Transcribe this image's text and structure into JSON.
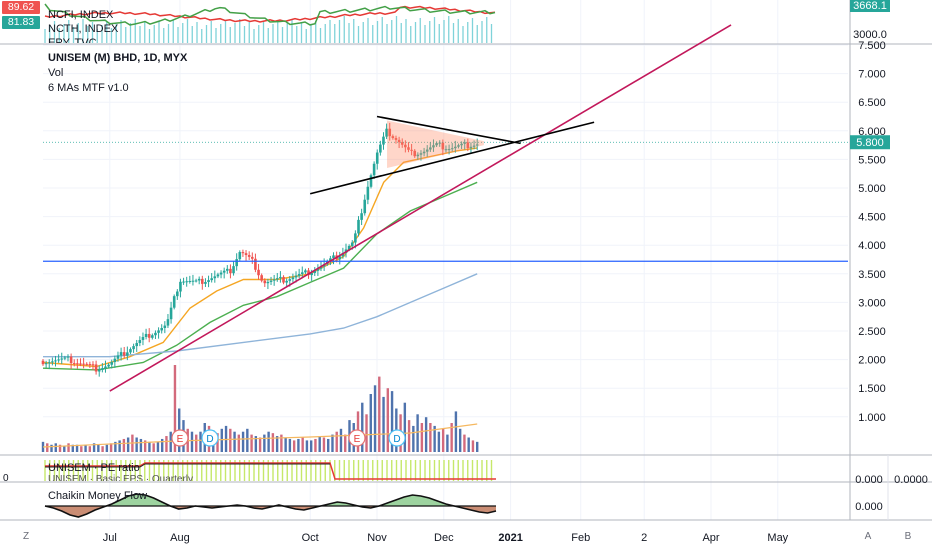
{
  "chart_data": {
    "type": "line",
    "title": "UNISEM (M) BHD, 1D, MYX",
    "indicators": [
      "Vol",
      "6 MAs MTF v1.0"
    ],
    "price_axis_ticks": [
      "7.500",
      "7.000",
      "6.500",
      "6.000",
      "5.500",
      "5.000",
      "4.500",
      "4.000",
      "3.500",
      "3.000",
      "2.500",
      "2.000",
      "1.500",
      "1.000"
    ],
    "last_price": "5.800",
    "ylim": [
      0.75,
      8.2
    ],
    "x_labels": [
      "Jul",
      "Aug",
      "Oct",
      "Nov",
      "Dec",
      "2021",
      "Feb",
      "2",
      "Apr",
      "May"
    ],
    "x_label_months": [
      6,
      7.05,
      9,
      10,
      11,
      12,
      13.05,
      14,
      15,
      16
    ],
    "candles_start_month": 5.0,
    "candles_end_month": 11.5,
    "price_path": [
      [
        5.0,
        1.98
      ],
      [
        5.4,
        2.0
      ],
      [
        5.8,
        1.85
      ],
      [
        6.0,
        1.92
      ],
      [
        6.3,
        2.2
      ],
      [
        6.6,
        2.45
      ],
      [
        6.85,
        2.6
      ],
      [
        7.05,
        3.4
      ],
      [
        7.3,
        3.35
      ],
      [
        7.55,
        3.45
      ],
      [
        7.8,
        3.55
      ],
      [
        7.95,
        3.9
      ],
      [
        8.15,
        3.7
      ],
      [
        8.3,
        3.35
      ],
      [
        8.6,
        3.4
      ],
      [
        8.9,
        3.5
      ],
      [
        9.2,
        3.65
      ],
      [
        9.45,
        3.85
      ],
      [
        9.65,
        4.05
      ],
      [
        9.85,
        5.0
      ],
      [
        10.0,
        5.6
      ],
      [
        10.15,
        6.0
      ],
      [
        10.3,
        5.85
      ],
      [
        10.5,
        5.6
      ],
      [
        10.7,
        5.65
      ],
      [
        10.9,
        5.75
      ],
      [
        11.1,
        5.7
      ],
      [
        11.3,
        5.75
      ],
      [
        11.5,
        5.78
      ]
    ],
    "ma_series": [
      {
        "color": "#f5a623",
        "values": [
          [
            5.0,
            1.95
          ],
          [
            5.8,
            1.88
          ],
          [
            6.3,
            2.05
          ],
          [
            6.8,
            2.3
          ],
          [
            7.2,
            2.9
          ],
          [
            7.6,
            3.2
          ],
          [
            8.0,
            3.4
          ],
          [
            8.5,
            3.4
          ],
          [
            9.0,
            3.5
          ],
          [
            9.5,
            3.8
          ],
          [
            9.8,
            4.3
          ],
          [
            10.1,
            5.1
          ],
          [
            10.4,
            5.45
          ],
          [
            10.8,
            5.55
          ],
          [
            11.2,
            5.65
          ],
          [
            11.5,
            5.7
          ]
        ]
      },
      {
        "color": "#4caf50",
        "values": [
          [
            5.0,
            1.85
          ],
          [
            5.8,
            1.82
          ],
          [
            6.5,
            1.95
          ],
          [
            7.0,
            2.25
          ],
          [
            7.5,
            2.65
          ],
          [
            8.0,
            2.95
          ],
          [
            8.5,
            3.1
          ],
          [
            9.0,
            3.35
          ],
          [
            9.5,
            3.6
          ],
          [
            10.0,
            4.2
          ],
          [
            10.5,
            4.6
          ],
          [
            11.0,
            4.85
          ],
          [
            11.5,
            5.1
          ]
        ]
      },
      {
        "color": "#8fb4d9",
        "values": [
          [
            5.0,
            2.05
          ],
          [
            6.0,
            2.05
          ],
          [
            7.0,
            2.15
          ],
          [
            8.0,
            2.3
          ],
          [
            9.0,
            2.45
          ],
          [
            9.5,
            2.55
          ],
          [
            10.0,
            2.75
          ],
          [
            10.5,
            3.0
          ],
          [
            11.0,
            3.25
          ],
          [
            11.5,
            3.5
          ]
        ]
      }
    ],
    "resistance_level": 3.72,
    "trend_lines": [
      {
        "color": "#c2185b",
        "points": [
          [
            6.0,
            1.45
          ],
          [
            15.3,
            7.85
          ]
        ]
      },
      {
        "color": "#000000",
        "points": [
          [
            10.0,
            6.25
          ],
          [
            12.15,
            5.78
          ]
        ]
      },
      {
        "color": "#000000",
        "points": [
          [
            9.0,
            4.9
          ],
          [
            13.25,
            6.15
          ]
        ]
      }
    ],
    "volume": [
      7,
      6,
      5,
      6,
      5,
      4,
      6,
      5,
      5,
      4,
      5,
      4,
      6,
      5,
      4,
      5,
      6,
      7,
      8,
      9,
      10,
      12,
      10,
      9,
      8,
      7,
      6,
      7,
      9,
      11,
      14,
      60,
      30,
      22,
      16,
      14,
      12,
      14,
      20,
      18,
      15,
      13,
      16,
      18,
      16,
      14,
      12,
      14,
      16,
      12,
      11,
      10,
      12,
      14,
      13,
      11,
      12,
      10,
      9,
      8,
      9,
      10,
      8,
      8,
      9,
      11,
      10,
      9,
      12,
      14,
      16,
      12,
      22,
      20,
      28,
      34,
      26,
      40,
      46,
      52,
      38,
      44,
      42,
      30,
      26,
      34,
      22,
      18,
      26,
      20,
      24,
      20,
      18,
      14,
      16,
      12,
      20,
      28,
      16,
      12,
      10,
      8,
      7
    ],
    "volume_series_name": "Vol",
    "overlay_badges": [
      "E",
      "D",
      "E",
      "D"
    ],
    "top_panel": {
      "legend": [
        "NCFI, INDEX",
        "NCTH, INDEX",
        "EPY, TVC"
      ],
      "badge_values": [
        "89.62",
        "81.83"
      ],
      "axis_ticks": [
        "3668.1",
        "3000.0"
      ]
    },
    "pe_panel": {
      "legend": "UNISEM · PE ratio",
      "axis_ticks": [
        "0.000",
        "0.0000"
      ],
      "left_label": "0",
      "note": "UNISEM · Basic EPS · Quarterly"
    },
    "cmf_panel": {
      "legend": "Chaikin Money Flow",
      "axis_ticks": [
        "0.000"
      ]
    },
    "corner_buttons": [
      "Z",
      "A",
      "B"
    ],
    "colors": {
      "up": "#26a69a",
      "down": "#ef5350",
      "trend": "#c2185b",
      "resistance": "#2962ff",
      "price_tag": "#26a69a"
    }
  }
}
